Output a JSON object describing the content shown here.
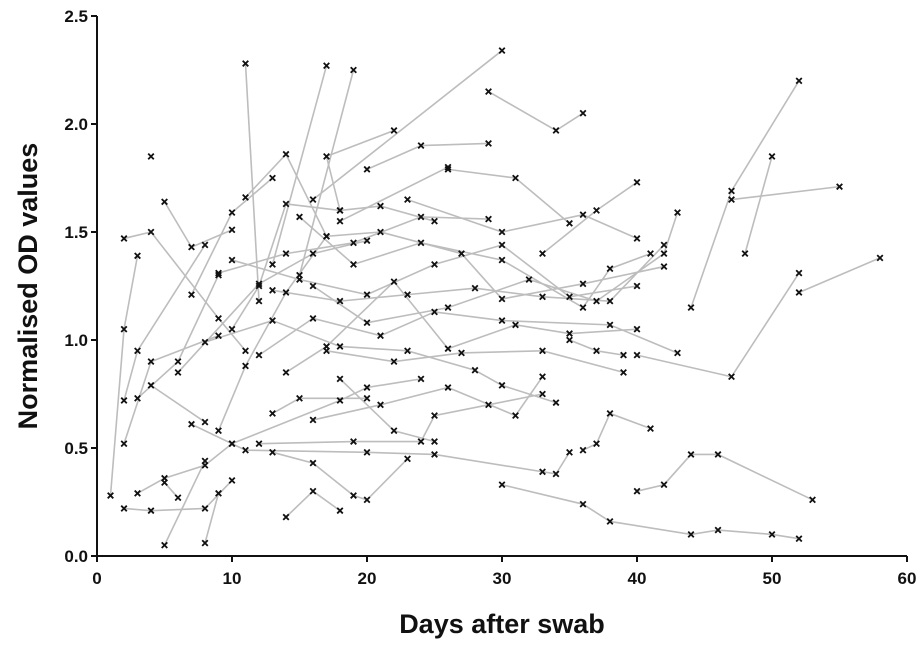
{
  "chart_data": {
    "type": "line",
    "x_label": "Days after swab",
    "y_label": "Normalised OD values",
    "xlim": [
      0,
      60
    ],
    "ylim": [
      0,
      2.5
    ],
    "xticks": [
      0,
      10,
      20,
      30,
      40,
      50,
      60
    ],
    "yticks": [
      {
        "value": 0,
        "label": "0.0"
      },
      0.5,
      {
        "value": 1,
        "label": "1.0"
      },
      1.5,
      {
        "value": 2,
        "label": "2.0"
      },
      2.5
    ],
    "color": "#bdbdbd",
    "marker_color": "#111111",
    "marker": "x",
    "series": [
      {
        "x": [
          1,
          2,
          3
        ],
        "values": [
          0.28,
          1.05,
          1.39
        ]
      },
      {
        "x": [
          2,
          4,
          9,
          11
        ],
        "values": [
          1.47,
          1.5,
          1.1,
          0.95
        ]
      },
      {
        "x": [
          11,
          12
        ],
        "values": [
          2.28,
          1.18
        ]
      },
      {
        "x": [
          17,
          13
        ],
        "values": [
          2.27,
          1.35
        ]
      },
      {
        "x": [
          19,
          15
        ],
        "values": [
          2.25,
          1.3
        ]
      },
      {
        "x": [
          30,
          16
        ],
        "values": [
          2.34,
          1.65
        ]
      },
      {
        "x": [
          29,
          34,
          36
        ],
        "values": [
          2.15,
          1.97,
          2.05
        ]
      },
      {
        "x": [
          52,
          47,
          44
        ],
        "values": [
          2.2,
          1.69,
          1.15
        ]
      },
      {
        "x": [
          55,
          47
        ],
        "values": [
          1.71,
          1.65
        ]
      },
      {
        "x": [
          52,
          58
        ],
        "values": [
          1.22,
          1.38
        ]
      },
      {
        "x": [
          50,
          48
        ],
        "values": [
          1.85,
          1.4
        ]
      },
      {
        "x": [
          52,
          47,
          40
        ],
        "values": [
          1.31,
          0.83,
          0.93
        ]
      },
      {
        "x": [
          53,
          46,
          44,
          42,
          40
        ],
        "values": [
          0.26,
          0.47,
          0.47,
          0.33,
          0.3
        ]
      },
      {
        "x": [
          52,
          50,
          46,
          44,
          38,
          36,
          30
        ],
        "values": [
          0.08,
          0.1,
          0.12,
          0.1,
          0.16,
          0.24,
          0.33
        ]
      },
      {
        "x": [
          41,
          38,
          37,
          36
        ],
        "values": [
          0.59,
          0.66,
          0.52,
          0.49
        ]
      },
      {
        "x": [
          5,
          8
        ],
        "values": [
          0.05,
          0.44
        ]
      },
      {
        "x": [
          8,
          9
        ],
        "values": [
          0.06,
          0.29
        ]
      },
      {
        "x": [
          40,
          37,
          33
        ],
        "values": [
          1.73,
          1.6,
          1.4
        ]
      },
      {
        "x": [
          22,
          17,
          18
        ],
        "values": [
          1.97,
          1.85,
          1.6
        ]
      },
      {
        "x": [
          29,
          24,
          20
        ],
        "values": [
          1.91,
          1.9,
          1.79
        ]
      },
      {
        "x": [
          18,
          26
        ],
        "values": [
          1.55,
          1.8
        ]
      },
      {
        "x": [
          4
        ],
        "values": [
          1.85
        ]
      },
      {
        "x": [
          2,
          4,
          8,
          10
        ],
        "values": [
          0.22,
          0.21,
          0.22,
          0.35
        ]
      },
      {
        "x": [
          3,
          5,
          8,
          10
        ],
        "values": [
          0.29,
          0.36,
          0.42,
          0.52
        ]
      },
      {
        "x": [
          6,
          5
        ],
        "values": [
          0.27,
          0.34
        ]
      },
      {
        "x": [
          13,
          16,
          19,
          20,
          23
        ],
        "values": [
          0.48,
          0.43,
          0.28,
          0.26,
          0.45
        ]
      },
      {
        "x": [
          10,
          18,
          20,
          24
        ],
        "values": [
          0.52,
          0.72,
          0.78,
          0.82
        ]
      },
      {
        "x": [
          14,
          16,
          18
        ],
        "values": [
          0.18,
          0.3,
          0.21
        ]
      },
      {
        "x": [
          7,
          11,
          20,
          25,
          33,
          34,
          35
        ],
        "values": [
          0.61,
          0.49,
          0.48,
          0.47,
          0.39,
          0.38,
          0.48
        ]
      },
      {
        "x": [
          12,
          19,
          24,
          25,
          29,
          33
        ],
        "values": [
          0.52,
          0.53,
          0.53,
          0.65,
          0.7,
          0.75
        ]
      },
      {
        "x": [
          2,
          3,
          8
        ],
        "values": [
          0.72,
          0.95,
          1.44
        ]
      },
      {
        "x": [
          2,
          4,
          9
        ],
        "values": [
          0.52,
          0.9,
          1.02
        ]
      },
      {
        "x": [
          3,
          6,
          9
        ],
        "values": [
          0.73,
          0.9,
          1.3
        ]
      },
      {
        "x": [
          6,
          12,
          16,
          20
        ],
        "values": [
          0.85,
          1.26,
          1.4,
          1.46
        ]
      },
      {
        "x": [
          9,
          14,
          19,
          24,
          29
        ],
        "values": [
          1.31,
          1.4,
          1.45,
          1.57,
          1.56
        ]
      },
      {
        "x": [
          10,
          15,
          20,
          25,
          30,
          35,
          40
        ],
        "values": [
          1.37,
          1.28,
          1.21,
          1.35,
          1.44,
          1.2,
          1.25
        ]
      },
      {
        "x": [
          11,
          14,
          17,
          21,
          27,
          30,
          36,
          42
        ],
        "values": [
          1.66,
          1.86,
          1.48,
          1.5,
          1.4,
          1.19,
          1.26,
          1.34
        ]
      },
      {
        "x": [
          12,
          16,
          21,
          25,
          30,
          38,
          43
        ],
        "values": [
          0.93,
          1.1,
          1.02,
          1.13,
          1.09,
          1.07,
          0.94
        ]
      },
      {
        "x": [
          13,
          18,
          23,
          28,
          33,
          38,
          42
        ],
        "values": [
          1.23,
          1.18,
          1.21,
          1.24,
          1.2,
          1.18,
          1.44
        ]
      },
      {
        "x": [
          8,
          13,
          18,
          23,
          28,
          30,
          34
        ],
        "values": [
          0.99,
          1.09,
          0.97,
          0.95,
          0.86,
          0.79,
          0.71
        ]
      },
      {
        "x": [
          14,
          17,
          22,
          26,
          31,
          35,
          40
        ],
        "values": [
          0.85,
          0.97,
          1.27,
          0.96,
          1.07,
          1.03,
          1.05
        ]
      },
      {
        "x": [
          15,
          19,
          24,
          30,
          36,
          38,
          41
        ],
        "values": [
          1.57,
          1.35,
          1.45,
          1.37,
          1.15,
          1.33,
          1.4
        ]
      },
      {
        "x": [
          16,
          20,
          26,
          32,
          37,
          42,
          43
        ],
        "values": [
          1.25,
          1.08,
          1.15,
          1.28,
          1.18,
          1.4,
          1.59
        ]
      },
      {
        "x": [
          17,
          22,
          27,
          33,
          39
        ],
        "values": [
          0.95,
          0.9,
          0.94,
          0.95,
          0.85
        ]
      },
      {
        "x": [
          10,
          12,
          14,
          18,
          21,
          25
        ],
        "values": [
          1.05,
          1.25,
          1.63,
          1.6,
          1.62,
          1.55
        ]
      },
      {
        "x": [
          23,
          30,
          36,
          40
        ],
        "values": [
          1.65,
          1.5,
          1.58,
          1.47
        ]
      },
      {
        "x": [
          26,
          31,
          35
        ],
        "values": [
          1.79,
          1.75,
          1.54
        ]
      },
      {
        "x": [
          16,
          21,
          26,
          31,
          33
        ],
        "values": [
          0.63,
          0.7,
          0.78,
          0.65,
          0.83
        ]
      },
      {
        "x": [
          9,
          11,
          14,
          17
        ],
        "values": [
          0.58,
          0.88,
          1.22,
          1.48
        ]
      },
      {
        "x": [
          18,
          22,
          25
        ],
        "values": [
          0.82,
          0.58,
          0.53
        ]
      },
      {
        "x": [
          13,
          15,
          20
        ],
        "values": [
          0.66,
          0.73,
          0.73
        ]
      },
      {
        "x": [
          35,
          37,
          39
        ],
        "values": [
          1.0,
          0.95,
          0.93
        ]
      },
      {
        "x": [
          7,
          10,
          13
        ],
        "values": [
          1.21,
          1.59,
          1.75
        ]
      },
      {
        "x": [
          5,
          7,
          10
        ],
        "values": [
          1.64,
          1.43,
          1.51
        ]
      },
      {
        "x": [
          4,
          8
        ],
        "values": [
          0.79,
          0.62
        ]
      }
    ]
  }
}
